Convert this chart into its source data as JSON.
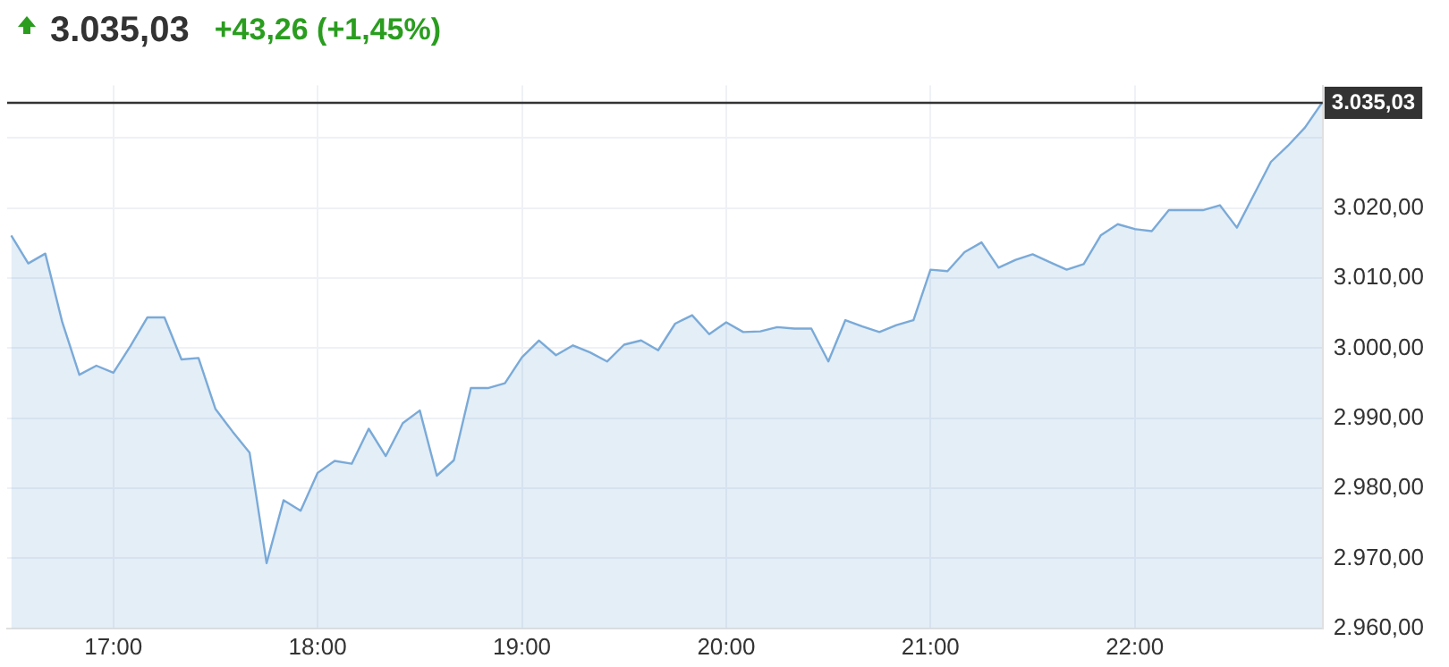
{
  "chart_data": {
    "type": "area",
    "title": "3.035,03",
    "subtitle": "+43,26 (+1,45%)",
    "x": [
      16.5,
      16.5833,
      16.6667,
      16.75,
      16.8333,
      16.9167,
      17,
      17.0833,
      17.1667,
      17.25,
      17.3333,
      17.4167,
      17.5,
      17.5833,
      17.6667,
      17.75,
      17.8333,
      17.9167,
      18,
      18.0833,
      18.1667,
      18.25,
      18.3333,
      18.4167,
      18.5,
      18.5833,
      18.6667,
      18.75,
      18.8333,
      18.9167,
      19,
      19.0833,
      19.1667,
      19.25,
      19.3333,
      19.4167,
      19.5,
      19.5833,
      19.6667,
      19.75,
      19.8333,
      19.9167,
      20,
      20.0833,
      20.1667,
      20.25,
      20.3333,
      20.4167,
      20.5,
      20.5833,
      20.6667,
      20.75,
      20.8333,
      20.9167,
      21,
      21.0833,
      21.1667,
      21.25,
      21.3333,
      21.4167,
      21.5,
      21.5833,
      21.6667,
      21.75,
      21.8333,
      21.9167,
      22,
      22.0833,
      22.1667,
      22.25,
      22.3333,
      22.4167,
      22.5,
      22.5833,
      22.6667,
      22.75,
      22.8333,
      22.9167
    ],
    "series": [
      {
        "color": "#7aaad8",
        "values": [
          3016.1,
          3012.1,
          3013.5,
          3003.7,
          2996.2,
          2997.5,
          2996.5,
          3000.3,
          3004.4,
          3004.4,
          2998.4,
          2998.6,
          2991.3,
          2988.1,
          2985.1,
          2969.3,
          2978.3,
          2976.8,
          2982.2,
          2983.9,
          2983.5,
          2988.5,
          2984.6,
          2989.3,
          2991.1,
          2981.8,
          2984,
          2994.3,
          2994.3,
          2995,
          2998.7,
          3001.1,
          2999,
          3000.4,
          2999.4,
          2998.1,
          3000.5,
          3001.1,
          2999.7,
          3003.5,
          3004.7,
          3002,
          3003.7,
          3002.3,
          3002.4,
          3003,
          3002.8,
          3002.8,
          2998.1,
          3004,
          3003.1,
          3002.3,
          3003.3,
          3004,
          3011.2,
          3011,
          3013.7,
          3015.1,
          3011.5,
          3012.6,
          3013.4,
          3012.3,
          3011.2,
          3012,
          3016.1,
          3017.7,
          3017,
          3016.7,
          3019.7,
          3019.7,
          3019.7,
          3020.4,
          3017.2,
          3021.9,
          3026.6,
          3028.9,
          3031.5,
          3035.03
        ]
      }
    ],
    "xlim": [
      16.48,
      22.92
    ],
    "xticks": [
      {
        "value": 17,
        "label": "17:00"
      },
      {
        "value": 18,
        "label": "18:00"
      },
      {
        "value": 19,
        "label": "19:00"
      },
      {
        "value": 20,
        "label": "20:00"
      },
      {
        "value": 21,
        "label": "21:00"
      },
      {
        "value": 22,
        "label": "22:00"
      }
    ],
    "ylim": [
      2960,
      3037.5
    ],
    "yticks": [
      {
        "value": 2960,
        "label": "2.960,00"
      },
      {
        "value": 2970,
        "label": "2.970,00"
      },
      {
        "value": 2980,
        "label": "2.980,00"
      },
      {
        "value": 2990,
        "label": "2.990,00"
      },
      {
        "value": 3000,
        "label": "3.000,00"
      },
      {
        "value": 3010,
        "label": "3.010,00"
      },
      {
        "value": 3020,
        "label": "3.020,00"
      },
      {
        "value": 3030,
        "label": null
      }
    ],
    "ref_lines": [
      {
        "axis": "y",
        "value": 3035.03,
        "label": "3.035,03",
        "color": "#333333"
      }
    ],
    "grid": true,
    "legend": false,
    "marker": "none",
    "line_style": "solid"
  }
}
